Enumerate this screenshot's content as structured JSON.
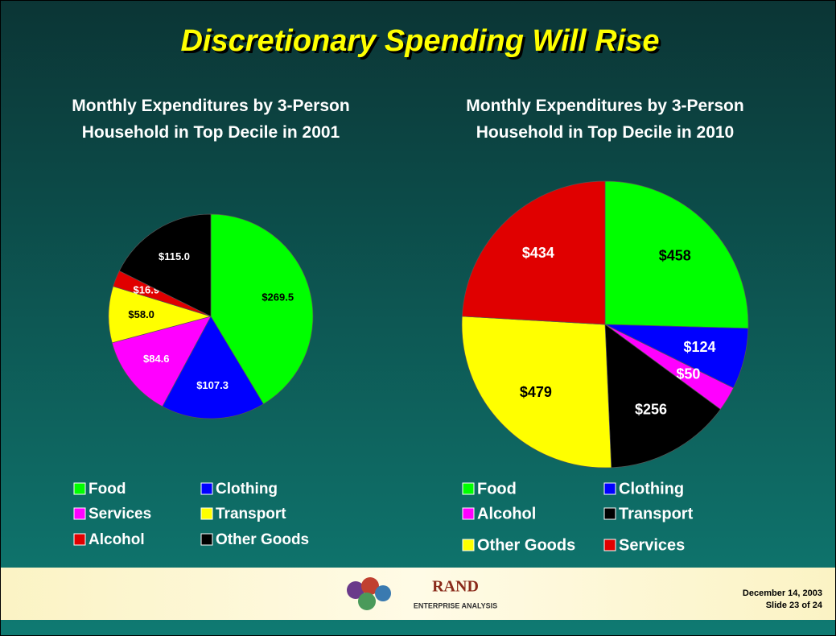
{
  "title": "Discretionary Spending Will Rise",
  "footer": {
    "logo": "RAND",
    "logo_subtitle": "ENTERPRISE ANALYSIS",
    "date": "December 14, 2003",
    "slide": "Slide 23 of 24"
  },
  "chart_data": [
    {
      "type": "pie",
      "title": "Monthly Expenditures by 3-Person Household in Top Decile in 2001",
      "categories": [
        "Food",
        "Clothing",
        "Services",
        "Transport",
        "Alcohol",
        "Other Goods"
      ],
      "values": [
        269.5,
        107.3,
        84.6,
        58.0,
        16.9,
        115.0
      ],
      "value_labels": [
        "$269.5",
        "$107.3",
        "$84.6",
        "$58.0",
        "$16.9",
        "$115.0"
      ],
      "colors": [
        "#00ff00",
        "#0000ff",
        "#ff00ff",
        "#ffff00",
        "#e00000",
        "#000000"
      ]
    },
    {
      "type": "pie",
      "title": "Monthly Expenditures by 3-Person Household in Top Decile in 2010",
      "categories": [
        "Food",
        "Clothing",
        "Alcohol",
        "Transport",
        "Other Goods",
        "Services"
      ],
      "values": [
        458,
        124,
        50,
        256,
        479,
        434
      ],
      "value_labels": [
        "$458",
        "$124",
        "$50",
        "$256",
        "$479",
        "$434"
      ],
      "colors": [
        "#00ff00",
        "#0000ff",
        "#ff00ff",
        "#000000",
        "#ffff00",
        "#e00000"
      ]
    }
  ]
}
